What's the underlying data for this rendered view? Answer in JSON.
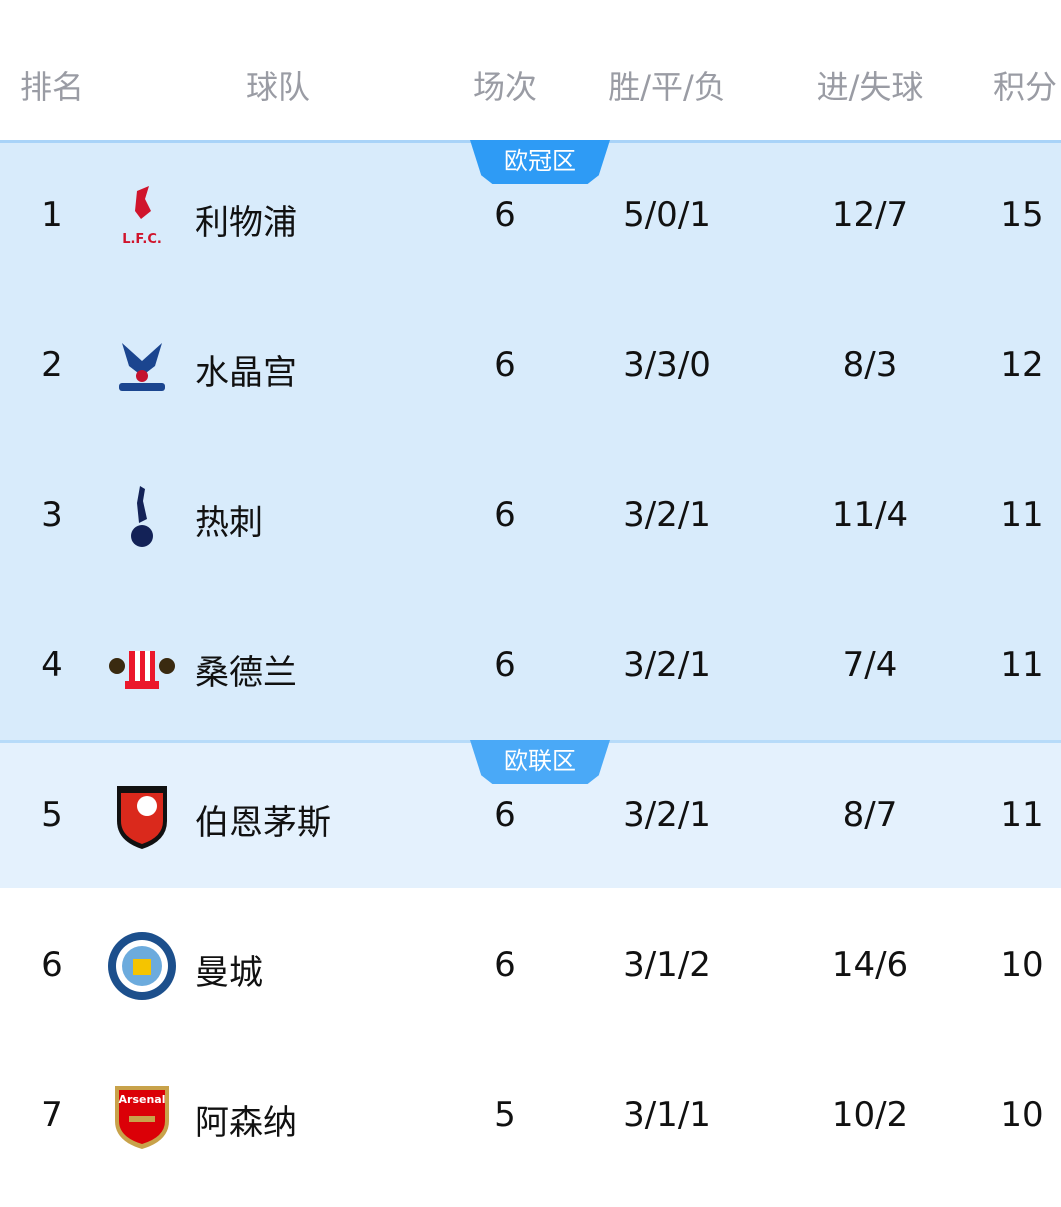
{
  "header": {
    "rank": "排名",
    "team": "球队",
    "played": "场次",
    "wdl": "胜/平/负",
    "goals": "进/失球",
    "points": "积分"
  },
  "zones": [
    {
      "label": "欧冠区",
      "color": "#2e9bf5",
      "background": "#d8ebfb"
    },
    {
      "label": "欧联区",
      "color": "#4aa9f7",
      "background": "#e4f1fd"
    }
  ],
  "rows": [
    {
      "rank": "1",
      "team": "利物浦",
      "played": "6",
      "wdl": "5/0/1",
      "goals": "12/7",
      "points": "15",
      "logo": "liverpool-crest"
    },
    {
      "rank": "2",
      "team": "水晶宫",
      "played": "6",
      "wdl": "3/3/0",
      "goals": "8/3",
      "points": "12",
      "logo": "crystal-palace-crest"
    },
    {
      "rank": "3",
      "team": "热刺",
      "played": "6",
      "wdl": "3/2/1",
      "goals": "11/4",
      "points": "11",
      "logo": "tottenham-crest"
    },
    {
      "rank": "4",
      "team": "桑德兰",
      "played": "6",
      "wdl": "3/2/1",
      "goals": "7/4",
      "points": "11",
      "logo": "sunderland-crest"
    },
    {
      "rank": "5",
      "team": "伯恩茅斯",
      "played": "6",
      "wdl": "3/2/1",
      "goals": "8/7",
      "points": "11",
      "logo": "bournemouth-crest"
    },
    {
      "rank": "6",
      "team": "曼城",
      "played": "6",
      "wdl": "3/1/2",
      "goals": "14/6",
      "points": "10",
      "logo": "man-city-crest"
    },
    {
      "rank": "7",
      "team": "阿森纳",
      "played": "5",
      "wdl": "3/1/1",
      "goals": "10/2",
      "points": "10",
      "logo": "arsenal-crest"
    }
  ]
}
